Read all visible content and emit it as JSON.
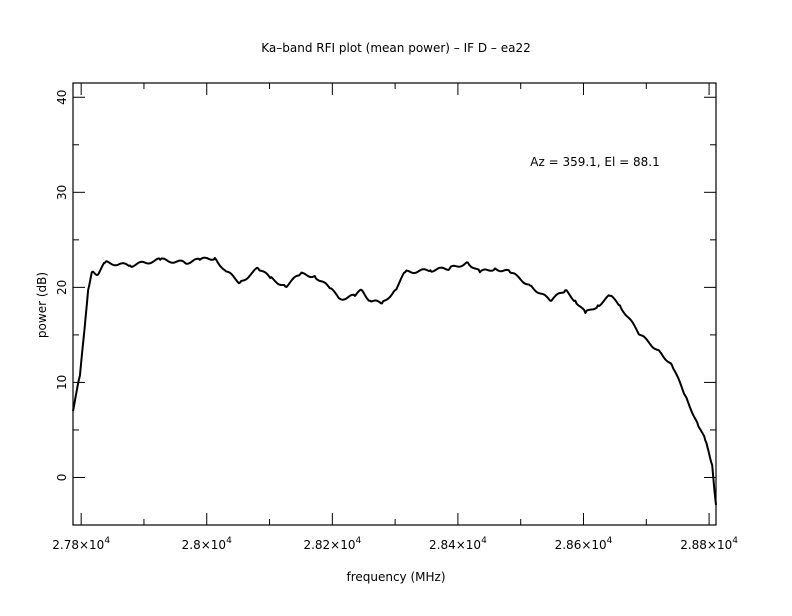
{
  "chart_data": {
    "type": "line",
    "title": "Ka–band RFI plot (mean power) – IF D – ea22",
    "xlabel": "frequency (MHz)",
    "ylabel": "power (dB)",
    "annotation": "Az = 359.1, El = 88.1",
    "xlim": [
      27787,
      28811
    ],
    "ylim": [
      -5,
      41.5
    ],
    "grid": false,
    "x_ticks": [
      {
        "value": 27800,
        "mantissa": "2.78",
        "exp": "4"
      },
      {
        "value": 28000,
        "mantissa": "2.8",
        "exp": "4"
      },
      {
        "value": 28200,
        "mantissa": "2.82",
        "exp": "4"
      },
      {
        "value": 28400,
        "mantissa": "2.84",
        "exp": "4"
      },
      {
        "value": 28600,
        "mantissa": "2.86",
        "exp": "4"
      },
      {
        "value": 28800,
        "mantissa": "2.88",
        "exp": "4"
      }
    ],
    "y_ticks": [
      {
        "value": 0,
        "label": "0"
      },
      {
        "value": 10,
        "label": "10"
      },
      {
        "value": 20,
        "label": "20"
      },
      {
        "value": 30,
        "label": "30"
      },
      {
        "value": 40,
        "label": "40"
      }
    ],
    "series": [
      {
        "name": "mean power",
        "color": "#000000",
        "x": [
          27787,
          27798,
          27811,
          27817,
          27825,
          27838,
          27878,
          27926,
          27965,
          27989,
          28013,
          28029,
          28053,
          28082,
          28101,
          28125,
          28149,
          28172,
          28196,
          28212,
          28236,
          28247,
          28260,
          28279,
          28300,
          28316,
          28356,
          28387,
          28416,
          28435,
          28459,
          28483,
          28515,
          28547,
          28571,
          28587,
          28603,
          28623,
          28642,
          28658,
          28690,
          28722,
          28741,
          28762,
          28781,
          28794,
          28805,
          28811
        ],
        "y": [
          7.0,
          10.7,
          19.7,
          21.6,
          21.3,
          22.6,
          22.3,
          22.9,
          22.6,
          22.9,
          23.1,
          21.8,
          20.5,
          22.0,
          21.0,
          20.1,
          21.4,
          21.2,
          19.9,
          18.8,
          19.1,
          19.7,
          18.6,
          18.3,
          19.7,
          21.6,
          21.8,
          22.0,
          22.6,
          21.6,
          22.0,
          21.6,
          20.2,
          18.6,
          19.7,
          18.6,
          17.3,
          18.1,
          19.1,
          18.1,
          15.0,
          13.2,
          11.8,
          8.6,
          5.8,
          3.9,
          1.3,
          -2.9
        ]
      }
    ]
  }
}
